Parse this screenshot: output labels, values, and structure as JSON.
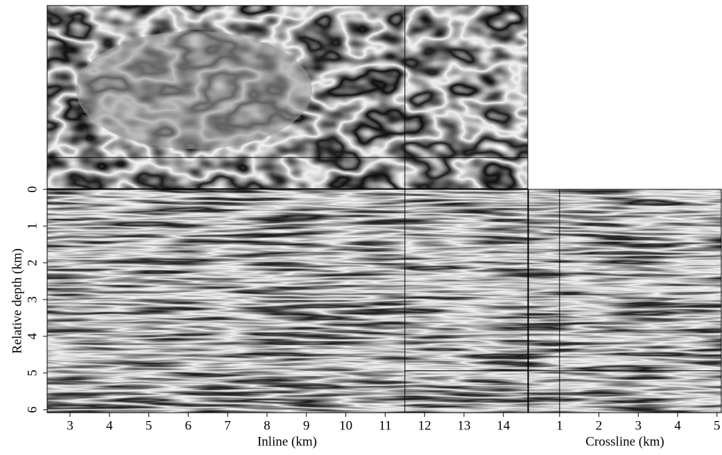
{
  "chart_data": [
    {
      "type": "seismic-section",
      "xlabel": "Inline (km)",
      "xlim": [
        2.42,
        14.62
      ],
      "xticks": [
        3,
        4,
        5,
        6,
        7,
        8,
        9,
        10,
        11,
        12,
        13,
        14
      ],
      "ylabel": "Relative depth (km)",
      "ylim": [
        0,
        6.08
      ],
      "yticks": [
        0,
        1,
        2,
        3,
        4,
        5,
        6
      ],
      "crosshair_x": 11.5,
      "crosshair_y": 4.94
    },
    {
      "type": "seismic-section",
      "xlabel": "Crossline (km)",
      "xlim": [
        0.21,
        5.11
      ],
      "xticks": [
        1,
        2,
        3,
        4,
        5
      ],
      "crosshair_x": 1
    }
  ]
}
